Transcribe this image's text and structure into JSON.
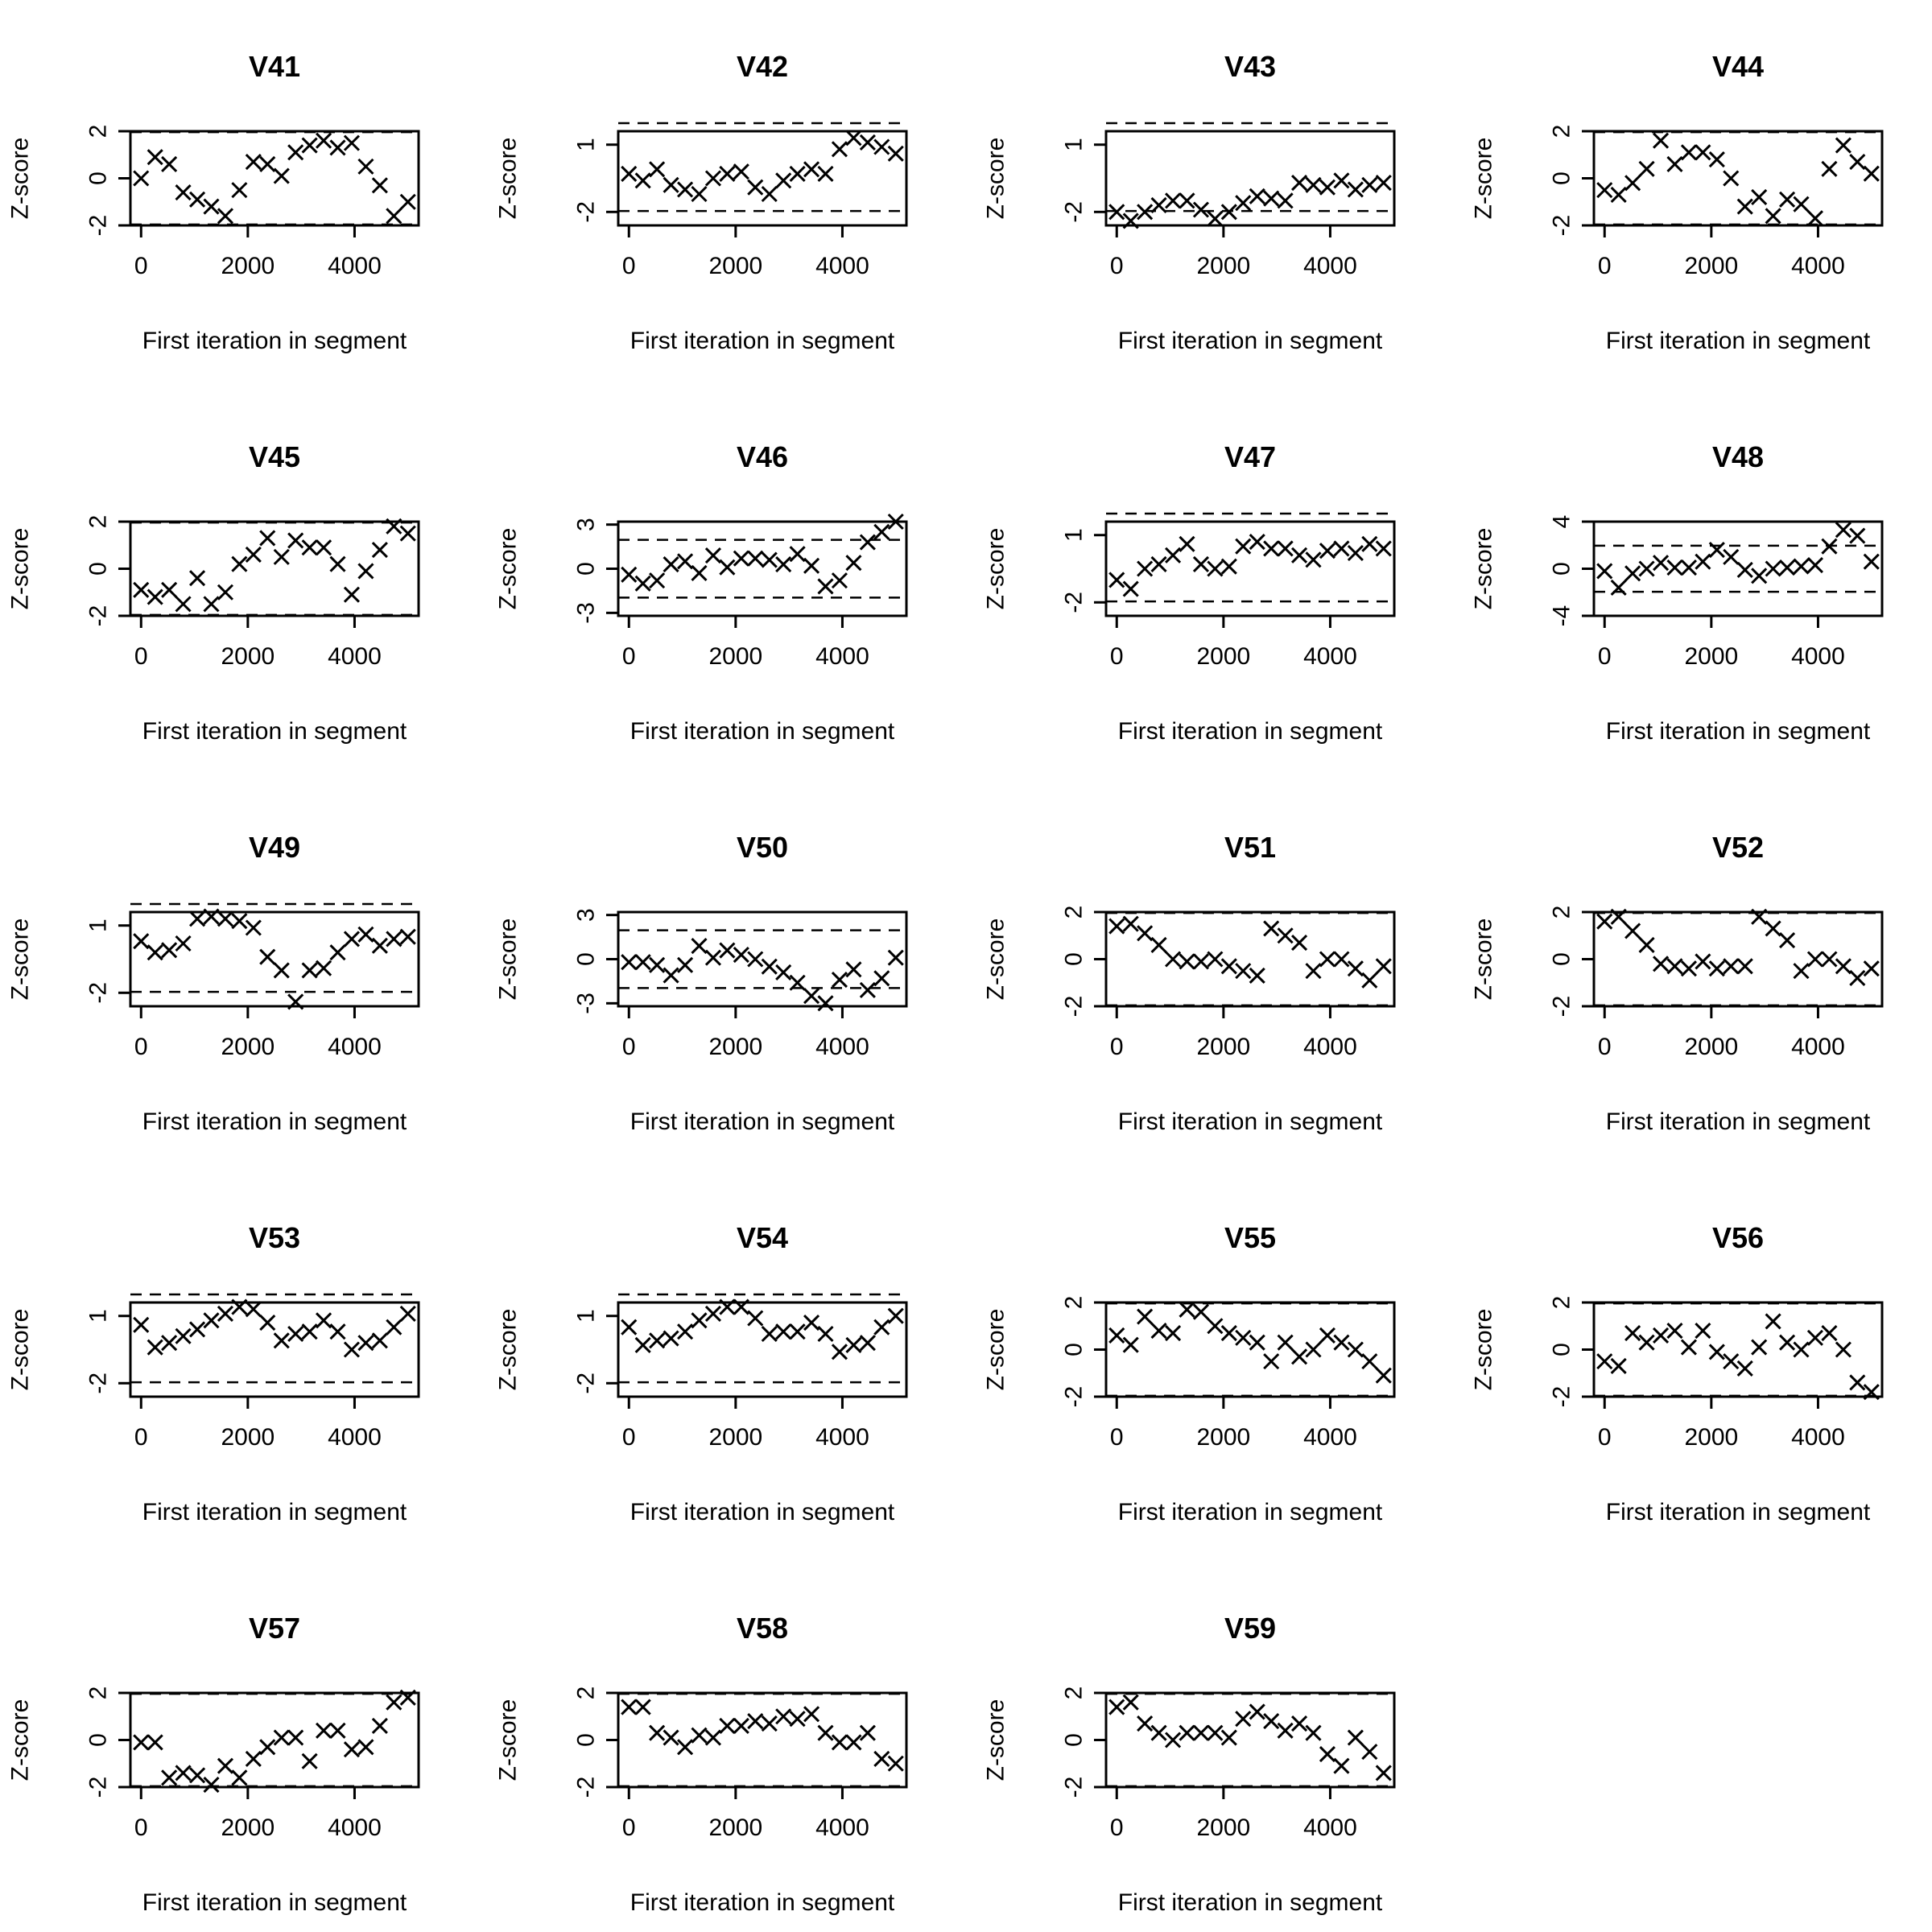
{
  "chart_data": [
    {
      "type": "scatter",
      "title": "V41",
      "xlabel": "First iteration in segment",
      "ylabel": "Z-score",
      "ylim": [
        -2,
        2
      ],
      "yticks": [
        -2,
        0,
        2
      ],
      "limits": [
        -1.96,
        1.96
      ],
      "x": [
        0,
        263,
        526,
        789,
        1053,
        1316,
        1579,
        1842,
        2105,
        2368,
        2632,
        2895,
        3158,
        3421,
        3684,
        3947,
        4211,
        4474,
        4737,
        5000
      ],
      "y": [
        0.0,
        0.9,
        0.6,
        -0.6,
        -0.9,
        -1.2,
        -1.6,
        -0.5,
        0.7,
        0.6,
        0.1,
        1.1,
        1.4,
        1.6,
        1.3,
        1.5,
        0.5,
        -0.3,
        -1.6,
        -1.0
      ]
    },
    {
      "type": "scatter",
      "title": "V42",
      "xlabel": "First iteration in segment",
      "ylabel": "Z-score",
      "ylim": [
        -2.6,
        1.6
      ],
      "yticks": [
        -2,
        1
      ],
      "limits": [
        -1.96,
        1.96
      ],
      "x": [
        0,
        263,
        526,
        789,
        1053,
        1316,
        1579,
        1842,
        2105,
        2368,
        2632,
        2895,
        3158,
        3421,
        3684,
        3947,
        4211,
        4474,
        4737,
        5000
      ],
      "y": [
        -0.3,
        -0.6,
        -0.1,
        -0.8,
        -1.0,
        -1.2,
        -0.5,
        -0.3,
        -0.2,
        -0.9,
        -1.2,
        -0.6,
        -0.3,
        -0.1,
        -0.3,
        0.8,
        1.3,
        1.1,
        0.9,
        0.6
      ]
    },
    {
      "type": "scatter",
      "title": "V43",
      "xlabel": "First iteration in segment",
      "ylabel": "Z-score",
      "ylim": [
        -2.6,
        1.6
      ],
      "yticks": [
        -2,
        1
      ],
      "limits": [
        -1.96,
        1.96
      ],
      "x": [
        0,
        263,
        526,
        789,
        1053,
        1316,
        1579,
        1842,
        2105,
        2368,
        2632,
        2895,
        3158,
        3421,
        3684,
        3947,
        4211,
        4474,
        4737,
        5000
      ],
      "y": [
        -2.0,
        -2.4,
        -2.0,
        -1.7,
        -1.5,
        -1.5,
        -1.9,
        -2.3,
        -2.0,
        -1.6,
        -1.3,
        -1.4,
        -1.5,
        -0.7,
        -0.8,
        -0.9,
        -0.6,
        -1.0,
        -0.8,
        -0.7
      ]
    },
    {
      "type": "scatter",
      "title": "V44",
      "xlabel": "First iteration in segment",
      "ylabel": "Z-score",
      "ylim": [
        -2,
        2
      ],
      "yticks": [
        -2,
        0,
        2
      ],
      "limits": [
        -1.96,
        1.96
      ],
      "x": [
        0,
        263,
        526,
        789,
        1053,
        1316,
        1579,
        1842,
        2105,
        2368,
        2632,
        2895,
        3158,
        3421,
        3684,
        3947,
        4211,
        4474,
        4737,
        5000
      ],
      "y": [
        -0.5,
        -0.7,
        -0.2,
        0.4,
        1.6,
        0.6,
        1.1,
        1.1,
        0.8,
        0.0,
        -1.2,
        -0.8,
        -1.6,
        -0.9,
        -1.1,
        -1.7,
        0.4,
        1.4,
        0.7,
        0.2
      ]
    },
    {
      "type": "scatter",
      "title": "V45",
      "xlabel": "First iteration in segment",
      "ylabel": "Z-score",
      "ylim": [
        -2,
        2
      ],
      "yticks": [
        -2,
        0,
        2
      ],
      "limits": [
        -1.96,
        1.96
      ],
      "x": [
        0,
        263,
        526,
        789,
        1053,
        1316,
        1579,
        1842,
        2105,
        2368,
        2632,
        2895,
        3158,
        3421,
        3684,
        3947,
        4211,
        4474,
        4737,
        5000
      ],
      "y": [
        -0.9,
        -1.2,
        -0.9,
        -1.5,
        -0.4,
        -1.5,
        -1.0,
        0.2,
        0.6,
        1.3,
        0.5,
        1.2,
        0.9,
        0.9,
        0.2,
        -1.1,
        -0.1,
        0.8,
        1.8,
        1.5
      ]
    },
    {
      "type": "scatter",
      "title": "V46",
      "xlabel": "First iteration in segment",
      "ylabel": "Z-score",
      "ylim": [
        -3.2,
        3.2
      ],
      "yticks": [
        -3,
        0,
        3
      ],
      "limits": [
        -1.96,
        1.96
      ],
      "x": [
        0,
        263,
        526,
        789,
        1053,
        1316,
        1579,
        1842,
        2105,
        2368,
        2632,
        2895,
        3158,
        3421,
        3684,
        3947,
        4211,
        4474,
        4737,
        5000
      ],
      "y": [
        -0.4,
        -1.0,
        -0.8,
        0.3,
        0.5,
        -0.3,
        0.9,
        0.1,
        0.7,
        0.7,
        0.6,
        0.3,
        1.0,
        0.2,
        -1.2,
        -0.8,
        0.4,
        1.8,
        2.5,
        3.2
      ]
    },
    {
      "type": "scatter",
      "title": "V47",
      "xlabel": "First iteration in segment",
      "ylabel": "Z-score",
      "ylim": [
        -2.6,
        1.6
      ],
      "yticks": [
        -2,
        1
      ],
      "limits": [
        -1.96,
        1.96
      ],
      "x": [
        0,
        263,
        526,
        789,
        1053,
        1316,
        1579,
        1842,
        2105,
        2368,
        2632,
        2895,
        3158,
        3421,
        3684,
        3947,
        4211,
        4474,
        4737,
        5000
      ],
      "y": [
        -1.0,
        -1.4,
        -0.5,
        -0.3,
        0.1,
        0.6,
        -0.3,
        -0.5,
        -0.4,
        0.5,
        0.7,
        0.4,
        0.4,
        0.1,
        -0.1,
        0.3,
        0.4,
        0.2,
        0.6,
        0.4
      ]
    },
    {
      "type": "scatter",
      "title": "V48",
      "xlabel": "First iteration in segment",
      "ylabel": "Z-score",
      "ylim": [
        -4,
        4
      ],
      "yticks": [
        -4,
        0,
        4
      ],
      "limits": [
        -1.96,
        1.96
      ],
      "x": [
        0,
        263,
        526,
        789,
        1053,
        1316,
        1579,
        1842,
        2105,
        2368,
        2632,
        2895,
        3158,
        3421,
        3684,
        3947,
        4211,
        4474,
        4737,
        5000
      ],
      "y": [
        -0.2,
        -1.6,
        -0.4,
        0.0,
        0.5,
        0.1,
        0.1,
        0.6,
        1.6,
        1.0,
        -0.1,
        -0.6,
        0.0,
        0.1,
        0.2,
        0.3,
        1.9,
        3.3,
        2.8,
        0.6
      ]
    },
    {
      "type": "scatter",
      "title": "V49",
      "xlabel": "First iteration in segment",
      "ylabel": "Z-score",
      "ylim": [
        -2.6,
        1.6
      ],
      "yticks": [
        -2,
        1
      ],
      "limits": [
        -1.96,
        1.96
      ],
      "x": [
        0,
        263,
        526,
        789,
        1053,
        1316,
        1579,
        1842,
        2105,
        2368,
        2632,
        2895,
        3158,
        3421,
        3684,
        3947,
        4211,
        4474,
        4737,
        5000
      ],
      "y": [
        0.3,
        -0.2,
        -0.1,
        0.2,
        1.3,
        1.4,
        1.3,
        1.2,
        0.9,
        -0.4,
        -1.0,
        -2.4,
        -1.0,
        -0.9,
        -0.2,
        0.4,
        0.6,
        0.1,
        0.4,
        0.5
      ]
    },
    {
      "type": "scatter",
      "title": "V50",
      "xlabel": "First iteration in segment",
      "ylabel": "Z-score",
      "ylim": [
        -3.2,
        3.2
      ],
      "yticks": [
        -3,
        0,
        3
      ],
      "limits": [
        -1.96,
        1.96
      ],
      "x": [
        0,
        263,
        526,
        789,
        1053,
        1316,
        1579,
        1842,
        2105,
        2368,
        2632,
        2895,
        3158,
        3421,
        3684,
        3947,
        4211,
        4474,
        4737,
        5000
      ],
      "y": [
        -0.2,
        -0.2,
        -0.4,
        -1.1,
        -0.4,
        0.9,
        0.1,
        0.6,
        0.3,
        0.0,
        -0.5,
        -0.9,
        -1.6,
        -2.5,
        -3.0,
        -1.4,
        -0.7,
        -2.1,
        -1.3,
        0.1
      ]
    },
    {
      "type": "scatter",
      "title": "V51",
      "xlabel": "First iteration in segment",
      "ylabel": "Z-score",
      "ylim": [
        -2,
        2
      ],
      "yticks": [
        -2,
        0,
        2
      ],
      "limits": [
        -1.96,
        1.96
      ],
      "x": [
        0,
        263,
        526,
        789,
        1053,
        1316,
        1579,
        1842,
        2105,
        2368,
        2632,
        2895,
        3158,
        3421,
        3684,
        3947,
        4211,
        4474,
        4737,
        5000
      ],
      "y": [
        1.4,
        1.5,
        1.1,
        0.6,
        0.0,
        -0.1,
        -0.1,
        0.0,
        -0.3,
        -0.5,
        -0.7,
        1.3,
        1.0,
        0.7,
        -0.5,
        0.0,
        0.0,
        -0.4,
        -0.9,
        -0.3
      ]
    },
    {
      "type": "scatter",
      "title": "V52",
      "xlabel": "First iteration in segment",
      "ylabel": "Z-score",
      "ylim": [
        -2,
        2
      ],
      "yticks": [
        -2,
        0,
        2
      ],
      "limits": [
        -1.96,
        1.96
      ],
      "x": [
        0,
        263,
        526,
        789,
        1053,
        1316,
        1579,
        1842,
        2105,
        2368,
        2632,
        2895,
        3158,
        3421,
        3684,
        3947,
        4211,
        4474,
        4737,
        5000
      ],
      "y": [
        1.6,
        1.8,
        1.2,
        0.6,
        -0.2,
        -0.3,
        -0.4,
        -0.1,
        -0.4,
        -0.3,
        -0.3,
        1.8,
        1.3,
        0.8,
        -0.5,
        0.0,
        0.0,
        -0.3,
        -0.8,
        -0.4
      ]
    },
    {
      "type": "scatter",
      "title": "V53",
      "xlabel": "First iteration in segment",
      "ylabel": "Z-score",
      "ylim": [
        -2.6,
        1.6
      ],
      "yticks": [
        -2,
        1
      ],
      "limits": [
        -1.96,
        1.96
      ],
      "x": [
        0,
        263,
        526,
        789,
        1053,
        1316,
        1579,
        1842,
        2105,
        2368,
        2632,
        2895,
        3158,
        3421,
        3684,
        3947,
        4211,
        4474,
        4737,
        5000
      ],
      "y": [
        0.6,
        -0.4,
        -0.2,
        0.1,
        0.4,
        0.8,
        1.1,
        1.4,
        1.3,
        0.7,
        -0.1,
        0.2,
        0.3,
        0.8,
        0.3,
        -0.5,
        -0.2,
        -0.1,
        0.5,
        1.1
      ]
    },
    {
      "type": "scatter",
      "title": "V54",
      "xlabel": "First iteration in segment",
      "ylabel": "Z-score",
      "ylim": [
        -2.6,
        1.6
      ],
      "yticks": [
        -2,
        1
      ],
      "limits": [
        -1.96,
        1.96
      ],
      "x": [
        0,
        263,
        526,
        789,
        1053,
        1316,
        1579,
        1842,
        2105,
        2368,
        2632,
        2895,
        3158,
        3421,
        3684,
        3947,
        4211,
        4474,
        4737,
        5000
      ],
      "y": [
        0.5,
        -0.3,
        -0.1,
        0.0,
        0.3,
        0.8,
        1.1,
        1.4,
        1.4,
        0.9,
        0.2,
        0.3,
        0.3,
        0.7,
        0.2,
        -0.6,
        -0.3,
        -0.2,
        0.5,
        1.0
      ]
    },
    {
      "type": "scatter",
      "title": "V55",
      "xlabel": "First iteration in segment",
      "ylabel": "Z-score",
      "ylim": [
        -2,
        2
      ],
      "yticks": [
        -2,
        0,
        2
      ],
      "limits": [
        -1.96,
        1.96
      ],
      "x": [
        0,
        263,
        526,
        789,
        1053,
        1316,
        1579,
        1842,
        2105,
        2368,
        2632,
        2895,
        3158,
        3421,
        3684,
        3947,
        4211,
        4474,
        4737,
        5000
      ],
      "y": [
        0.6,
        0.2,
        1.4,
        0.8,
        0.7,
        1.7,
        1.6,
        1.0,
        0.7,
        0.5,
        0.3,
        -0.5,
        0.3,
        -0.3,
        0.0,
        0.6,
        0.3,
        0.0,
        -0.5,
        -1.1
      ]
    },
    {
      "type": "scatter",
      "title": "V56",
      "xlabel": "First iteration in segment",
      "ylabel": "Z-score",
      "ylim": [
        -2,
        2
      ],
      "yticks": [
        -2,
        0,
        2
      ],
      "limits": [
        -1.96,
        1.96
      ],
      "x": [
        0,
        263,
        526,
        789,
        1053,
        1316,
        1579,
        1842,
        2105,
        2368,
        2632,
        2895,
        3158,
        3421,
        3684,
        3947,
        4211,
        4474,
        4737,
        5000
      ],
      "y": [
        -0.5,
        -0.7,
        0.7,
        0.3,
        0.6,
        0.8,
        0.1,
        0.8,
        -0.1,
        -0.5,
        -0.8,
        0.1,
        1.2,
        0.3,
        0.0,
        0.5,
        0.7,
        0.0,
        -1.4,
        -1.8
      ]
    },
    {
      "type": "scatter",
      "title": "V57",
      "xlabel": "First iteration in segment",
      "ylabel": "Z-score",
      "ylim": [
        -2,
        2
      ],
      "yticks": [
        -2,
        0,
        2
      ],
      "limits": [
        -1.96,
        1.96
      ],
      "x": [
        0,
        263,
        526,
        789,
        1053,
        1316,
        1579,
        1842,
        2105,
        2368,
        2632,
        2895,
        3158,
        3421,
        3684,
        3947,
        4211,
        4474,
        4737,
        5000
      ],
      "y": [
        -0.1,
        -0.1,
        -1.6,
        -1.4,
        -1.5,
        -1.9,
        -1.1,
        -1.6,
        -0.8,
        -0.3,
        0.1,
        0.1,
        -0.9,
        0.4,
        0.4,
        -0.4,
        -0.3,
        0.6,
        1.6,
        1.8
      ]
    },
    {
      "type": "scatter",
      "title": "V58",
      "xlabel": "First iteration in segment",
      "ylabel": "Z-score",
      "ylim": [
        -2,
        2
      ],
      "yticks": [
        -2,
        0,
        2
      ],
      "limits": [
        -1.96,
        1.96
      ],
      "x": [
        0,
        263,
        526,
        789,
        1053,
        1316,
        1579,
        1842,
        2105,
        2368,
        2632,
        2895,
        3158,
        3421,
        3684,
        3947,
        4211,
        4474,
        4737,
        5000
      ],
      "y": [
        1.4,
        1.4,
        0.3,
        0.1,
        -0.3,
        0.2,
        0.1,
        0.6,
        0.6,
        0.8,
        0.7,
        1.0,
        0.9,
        1.1,
        0.3,
        -0.1,
        -0.1,
        0.3,
        -0.8,
        -1.0
      ]
    },
    {
      "type": "scatter",
      "title": "V59",
      "xlabel": "First iteration in segment",
      "ylabel": "Z-score",
      "ylim": [
        -2,
        2
      ],
      "yticks": [
        -2,
        0,
        2
      ],
      "limits": [
        -1.96,
        1.96
      ],
      "x": [
        0,
        263,
        526,
        789,
        1053,
        1316,
        1579,
        1842,
        2105,
        2368,
        2632,
        2895,
        3158,
        3421,
        3684,
        3947,
        4211,
        4474,
        4737,
        5000
      ],
      "y": [
        1.4,
        1.6,
        0.7,
        0.3,
        0.0,
        0.3,
        0.3,
        0.3,
        0.1,
        0.9,
        1.2,
        0.8,
        0.4,
        0.7,
        0.3,
        -0.6,
        -1.1,
        0.1,
        -0.5,
        -1.4
      ]
    }
  ],
  "xaxis": {
    "ticks": [
      0,
      2000,
      4000
    ],
    "tick_labels": [
      "0",
      "2000",
      "4000"
    ],
    "range": [
      -200,
      5200
    ]
  }
}
